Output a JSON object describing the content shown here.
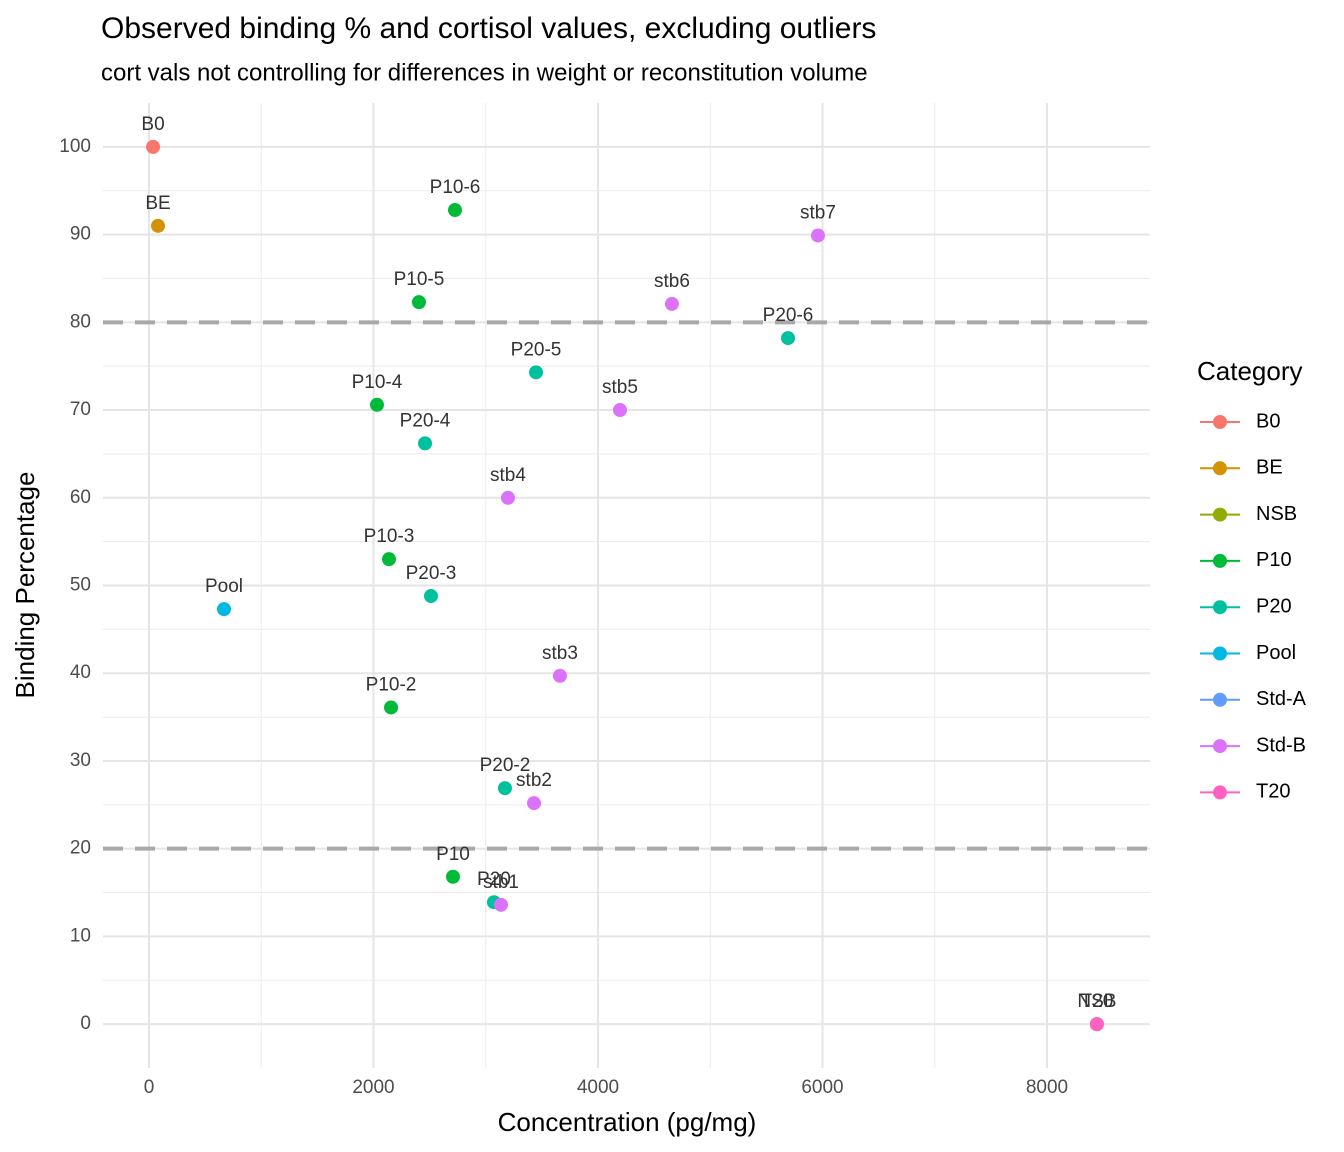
{
  "chart_data": {
    "type": "scatter",
    "title": "Observed binding % and cortisol values, excluding outliers",
    "subtitle": "cort vals not controlling for differences in weight or reconstitution volume",
    "x_label": "Concentration (pg/mg)",
    "y_label": "Binding Percentage",
    "legend_title": "Category",
    "legend_position": "right",
    "grid": true,
    "xlim": [
      -410,
      8918
    ],
    "ylim": [
      -5,
      105
    ],
    "xticks": [
      0,
      2000,
      4000,
      6000,
      8000
    ],
    "yticks": [
      0,
      10,
      20,
      30,
      40,
      50,
      60,
      70,
      80,
      90,
      100
    ],
    "xminor": [
      1000,
      3000,
      5000,
      7000
    ],
    "yminor": [
      5,
      15,
      25,
      35,
      45,
      55,
      65,
      75,
      85,
      95
    ],
    "hlines": [
      80,
      20
    ],
    "hline_color": "#a9a9a9",
    "series": [
      {
        "name": "B0",
        "color": "#F8766D",
        "x": [
          36
        ],
        "values": [
          100
        ],
        "labels": [
          "B0"
        ]
      },
      {
        "name": "BE",
        "color": "#D39200",
        "x": [
          80
        ],
        "values": [
          91.0
        ],
        "labels": [
          "BE"
        ]
      },
      {
        "name": "NSB",
        "color": "#93AA00",
        "x": [
          8445
        ],
        "values": [
          0
        ],
        "labels": [
          "NSB"
        ]
      },
      {
        "name": "P10",
        "color": "#00BA38",
        "x": [
          2726,
          2405,
          2031,
          2138,
          2156,
          2708
        ],
        "values": [
          92.8,
          82.3,
          70.6,
          53.0,
          36.1,
          16.8
        ],
        "labels": [
          "P10-6",
          "P10-5",
          "P10-4",
          "P10-3",
          "P10-2",
          "P10"
        ]
      },
      {
        "name": "P20",
        "color": "#00C19F",
        "x": [
          5693,
          3448,
          2459,
          2512,
          3171,
          3073
        ],
        "values": [
          78.2,
          74.3,
          66.2,
          48.8,
          26.9,
          13.9
        ],
        "labels": [
          "P20-6",
          "P20-5",
          "P20-4",
          "P20-3",
          "P20-2",
          "P20"
        ]
      },
      {
        "name": "Pool",
        "color": "#00B9E3",
        "x": [
          668
        ],
        "values": [
          47.3
        ],
        "labels": [
          "Pool"
        ]
      },
      {
        "name": "Std-A",
        "color": "#619CFF",
        "x": [],
        "values": [],
        "labels": []
      },
      {
        "name": "Std-B",
        "color": "#DB72FB",
        "x": [
          5960,
          4659,
          4196,
          3198,
          3661,
          3430,
          3136
        ],
        "values": [
          89.9,
          82.1,
          70.0,
          60.0,
          39.7,
          25.2,
          13.6
        ],
        "labels": [
          "stb7",
          "stb6",
          "stb5",
          "stb4",
          "stb3",
          "stb2",
          "stb1"
        ]
      },
      {
        "name": "T20",
        "color": "#FF61C3",
        "x": [
          8445
        ],
        "values": [
          0
        ],
        "labels": [
          "T20"
        ]
      }
    ]
  }
}
